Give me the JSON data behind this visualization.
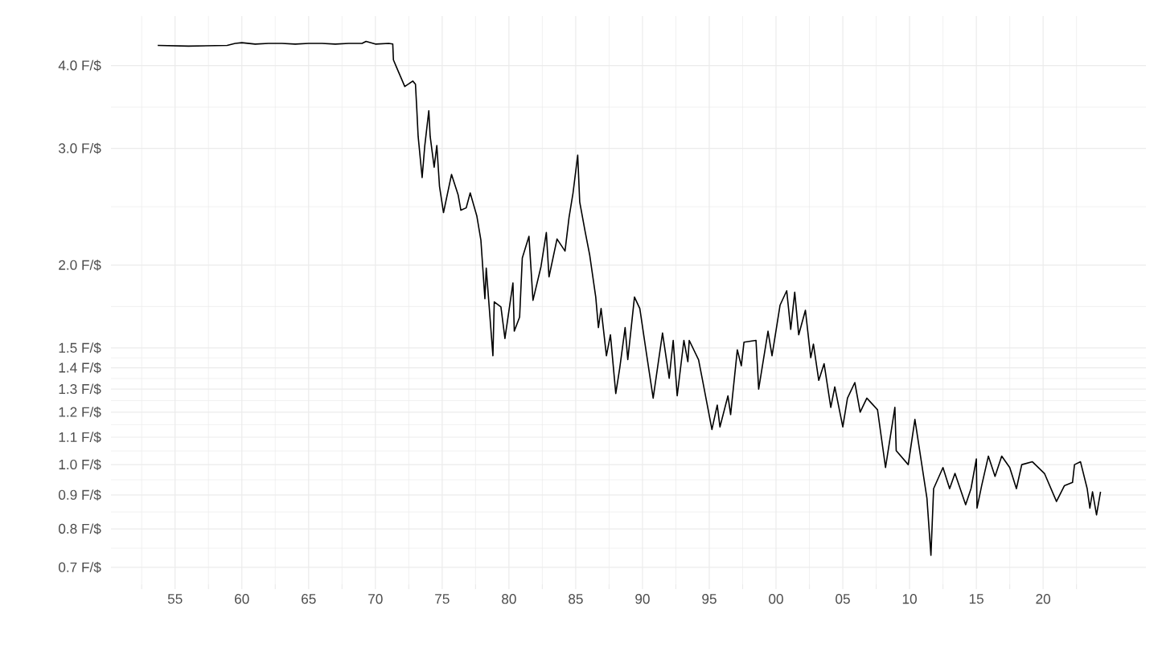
{
  "chart_data": {
    "type": "line",
    "color": "#000000",
    "line_style": "solid",
    "log": "y",
    "grid": true,
    "x": [
      1953.7,
      1956,
      1958.9,
      1959.5,
      1960,
      1961,
      1962,
      1963,
      1964,
      1965,
      1966,
      1967,
      1968,
      1969,
      1969.3,
      1970,
      1971,
      1971.3,
      1971.35,
      1971.6,
      1972.2,
      1972.8,
      1973.0,
      1973.1,
      1973.2,
      1973.5,
      1973.7,
      1974.0,
      1974.1,
      1974.4,
      1974.6,
      1974.8,
      1975.1,
      1975.7,
      1976.2,
      1976.4,
      1976.8,
      1977.1,
      1977.6,
      1977.9,
      1978.2,
      1978.3,
      1978.8,
      1978.9,
      1979.4,
      1979.7,
      1980.3,
      1980.4,
      1980.8,
      1981.0,
      1981.5,
      1981.8,
      1982.4,
      1982.8,
      1983.0,
      1983.6,
      1984.2,
      1984.5,
      1984.8,
      1985.15,
      1985.3,
      1985.7,
      1986.05,
      1986.5,
      1986.7,
      1986.9,
      1987.3,
      1987.6,
      1988.0,
      1988.3,
      1988.7,
      1988.9,
      1989.4,
      1989.8,
      1990.3,
      1990.8,
      1991.5,
      1992.0,
      1992.3,
      1992.6,
      1993.1,
      1993.4,
      1993.5,
      1994.2,
      1994.5,
      1995.2,
      1995.6,
      1995.8,
      1996.4,
      1996.6,
      1997.1,
      1997.4,
      1997.6,
      1998.5,
      1998.7,
      1999.4,
      1999.7,
      2000.3,
      2000.8,
      2001.1,
      2001.4,
      2001.7,
      2002.2,
      2002.6,
      2002.8,
      2003.2,
      2003.6,
      2004.1,
      2004.4,
      2005.0,
      2005.35,
      2005.9,
      2006.3,
      2006.8,
      2007.6,
      2008.2,
      2008.9,
      2009.0,
      2009.9,
      2010.4,
      2011.3,
      2011.6,
      2011.8,
      2012.5,
      2013.0,
      2013.4,
      2014.2,
      2014.6,
      2015.0,
      2015.05,
      2015.4,
      2015.9,
      2016.4,
      2016.9,
      2017.5,
      2018.0,
      2018.4,
      2019.2,
      2020.1,
      2021.0,
      2021.6,
      2022.2,
      2022.35,
      2022.8,
      2023.3,
      2023.5,
      2023.7,
      2024.0,
      2024.3
    ],
    "values": [
      4.29,
      4.28,
      4.29,
      4.32,
      4.33,
      4.31,
      4.32,
      4.32,
      4.31,
      4.32,
      4.32,
      4.31,
      4.32,
      4.32,
      4.35,
      4.31,
      4.32,
      4.31,
      4.08,
      3.97,
      3.72,
      3.79,
      3.75,
      3.44,
      3.13,
      2.71,
      3.03,
      3.42,
      3.13,
      2.81,
      3.03,
      2.63,
      2.4,
      2.74,
      2.55,
      2.42,
      2.44,
      2.57,
      2.37,
      2.18,
      1.78,
      1.98,
      1.46,
      1.76,
      1.73,
      1.55,
      1.88,
      1.59,
      1.67,
      2.05,
      2.21,
      1.77,
      1.99,
      2.24,
      1.92,
      2.19,
      2.1,
      2.36,
      2.57,
      2.93,
      2.49,
      2.25,
      2.07,
      1.79,
      1.61,
      1.72,
      1.46,
      1.57,
      1.28,
      1.4,
      1.61,
      1.44,
      1.79,
      1.72,
      1.47,
      1.26,
      1.58,
      1.35,
      1.54,
      1.27,
      1.54,
      1.43,
      1.54,
      1.44,
      1.34,
      1.13,
      1.23,
      1.14,
      1.27,
      1.19,
      1.49,
      1.41,
      1.53,
      1.54,
      1.3,
      1.59,
      1.46,
      1.74,
      1.83,
      1.6,
      1.82,
      1.57,
      1.71,
      1.45,
      1.52,
      1.34,
      1.42,
      1.22,
      1.31,
      1.14,
      1.26,
      1.33,
      1.2,
      1.26,
      1.21,
      0.99,
      1.22,
      1.05,
      1.0,
      1.17,
      0.89,
      0.73,
      0.92,
      0.99,
      0.92,
      0.97,
      0.87,
      0.92,
      1.02,
      0.86,
      0.93,
      1.03,
      0.96,
      1.03,
      0.99,
      0.92,
      1.0,
      1.01,
      0.97,
      0.88,
      0.93,
      0.94,
      1.0,
      1.01,
      0.92,
      0.86,
      0.91,
      0.84,
      0.91
    ],
    "xlim": [
      1950.2,
      2027.7
    ],
    "ylim": [
      0.66,
      4.75
    ],
    "xticks": [
      {
        "value": 1955,
        "label": "55"
      },
      {
        "value": 1960,
        "label": "60"
      },
      {
        "value": 1965,
        "label": "65"
      },
      {
        "value": 1970,
        "label": "70"
      },
      {
        "value": 1975,
        "label": "75"
      },
      {
        "value": 1980,
        "label": "80"
      },
      {
        "value": 1985,
        "label": "85"
      },
      {
        "value": 1990,
        "label": "90"
      },
      {
        "value": 1995,
        "label": "95"
      },
      {
        "value": 2000,
        "label": "00"
      },
      {
        "value": 2005,
        "label": "05"
      },
      {
        "value": 2010,
        "label": "10"
      },
      {
        "value": 2015,
        "label": "15"
      },
      {
        "value": 2020,
        "label": "20"
      }
    ],
    "yticks": [
      {
        "value": 0.7,
        "label": "0.7 F/$"
      },
      {
        "value": 0.8,
        "label": "0.8 F/$"
      },
      {
        "value": 0.9,
        "label": "0.9 F/$"
      },
      {
        "value": 1.0,
        "label": "1.0 F/$"
      },
      {
        "value": 1.1,
        "label": "1.1 F/$"
      },
      {
        "value": 1.2,
        "label": "1.2 F/$"
      },
      {
        "value": 1.3,
        "label": "1.3 F/$"
      },
      {
        "value": 1.4,
        "label": "1.4 F/$"
      },
      {
        "value": 1.5,
        "label": "1.5 F/$"
      },
      {
        "value": 2.0,
        "label": "2.0 F/$"
      },
      {
        "value": 3.0,
        "label": "3.0 F/$"
      },
      {
        "value": 4.0,
        "label": "4.0 F/$"
      }
    ]
  }
}
